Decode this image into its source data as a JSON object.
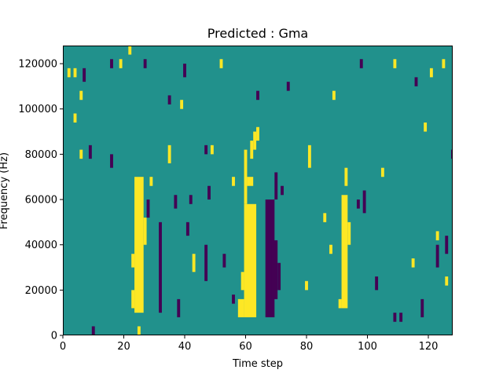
{
  "chart_data": {
    "type": "heatmap",
    "title": "Predicted : Gma",
    "xlabel": "Time step",
    "ylabel": "Frequency (Hz)",
    "xlim": [
      0,
      128
    ],
    "ylim": [
      0,
      128000
    ],
    "x_ticks": [
      0,
      20,
      40,
      60,
      80,
      100,
      120
    ],
    "y_ticks": [
      0,
      20000,
      40000,
      60000,
      80000,
      100000,
      120000
    ],
    "x_tick_labels": [
      "0",
      "20",
      "40",
      "60",
      "80",
      "100",
      "120"
    ],
    "y_tick_labels": [
      "0",
      "20000",
      "40000",
      "60000",
      "80000",
      "100000",
      "120000"
    ],
    "colors": {
      "background": "#21918c",
      "high": "#fde725",
      "low": "#440154"
    },
    "cells": [
      {
        "x0": 59.5,
        "x1": 63.5,
        "y0": 8000,
        "y1": 58000,
        "level": "high"
      },
      {
        "x0": 59.5,
        "x1": 60.5,
        "y0": 58000,
        "y1": 82000,
        "level": "high"
      },
      {
        "x0": 60.5,
        "x1": 62.5,
        "y0": 66000,
        "y1": 70000,
        "level": "high"
      },
      {
        "x0": 61.5,
        "x1": 62.5,
        "y0": 78000,
        "y1": 86000,
        "level": "high"
      },
      {
        "x0": 62.5,
        "x1": 63.5,
        "y0": 82000,
        "y1": 90000,
        "level": "high"
      },
      {
        "x0": 63.5,
        "x1": 64.5,
        "y0": 86000,
        "y1": 92000,
        "level": "high"
      },
      {
        "x0": 57.5,
        "x1": 59.5,
        "y0": 8000,
        "y1": 16000,
        "level": "high"
      },
      {
        "x0": 58.5,
        "x1": 59.5,
        "y0": 20000,
        "y1": 28000,
        "level": "high"
      },
      {
        "x0": 23.5,
        "x1": 26.5,
        "y0": 10000,
        "y1": 70000,
        "level": "high"
      },
      {
        "x0": 22.5,
        "x1": 23.5,
        "y0": 12000,
        "y1": 20000,
        "level": "high"
      },
      {
        "x0": 22.5,
        "x1": 23.5,
        "y0": 30000,
        "y1": 36000,
        "level": "high"
      },
      {
        "x0": 26.5,
        "x1": 27.5,
        "y0": 40000,
        "y1": 52000,
        "level": "high"
      },
      {
        "x0": 24.5,
        "x1": 25.5,
        "y0": 0,
        "y1": 4000,
        "level": "high"
      },
      {
        "x0": 91.5,
        "x1": 93.5,
        "y0": 12000,
        "y1": 62000,
        "level": "high"
      },
      {
        "x0": 90.5,
        "x1": 91.5,
        "y0": 12000,
        "y1": 16000,
        "level": "high"
      },
      {
        "x0": 93.5,
        "x1": 94.5,
        "y0": 40000,
        "y1": 50000,
        "level": "high"
      },
      {
        "x0": 92.5,
        "x1": 93.5,
        "y0": 66000,
        "y1": 74000,
        "level": "high"
      },
      {
        "x0": 66.5,
        "x1": 69.5,
        "y0": 8000,
        "y1": 60000,
        "level": "low"
      },
      {
        "x0": 68.5,
        "x1": 70.5,
        "y0": 16000,
        "y1": 42000,
        "level": "low"
      },
      {
        "x0": 69.5,
        "x1": 70.5,
        "y0": 60000,
        "y1": 72000,
        "level": "low"
      },
      {
        "x0": 70.5,
        "x1": 71.5,
        "y0": 20000,
        "y1": 32000,
        "level": "low"
      },
      {
        "x0": 71.5,
        "x1": 72.5,
        "y0": 62000,
        "y1": 66000,
        "level": "low"
      },
      {
        "x0": 98.5,
        "x1": 99.5,
        "y0": 54000,
        "y1": 64000,
        "level": "low"
      },
      {
        "x0": 96.5,
        "x1": 97.5,
        "y0": 56000,
        "y1": 60000,
        "level": "low"
      },
      {
        "x0": 31.5,
        "x1": 32.5,
        "y0": 10000,
        "y1": 50000,
        "level": "low"
      },
      {
        "x0": 27.5,
        "x1": 28.5,
        "y0": 52000,
        "y1": 60000,
        "level": "low"
      },
      {
        "x0": 36.5,
        "x1": 37.5,
        "y0": 56000,
        "y1": 62000,
        "level": "low"
      },
      {
        "x0": 37.5,
        "x1": 38.5,
        "y0": 8000,
        "y1": 16000,
        "level": "low"
      },
      {
        "x0": 40.5,
        "x1": 41.5,
        "y0": 44000,
        "y1": 50000,
        "level": "low"
      },
      {
        "x0": 41.5,
        "x1": 42.5,
        "y0": 58000,
        "y1": 62000,
        "level": "low"
      },
      {
        "x0": 46.5,
        "x1": 47.5,
        "y0": 24000,
        "y1": 40000,
        "level": "low"
      },
      {
        "x0": 47.5,
        "x1": 48.5,
        "y0": 60000,
        "y1": 66000,
        "level": "low"
      },
      {
        "x0": 52.5,
        "x1": 53.5,
        "y0": 30000,
        "y1": 36000,
        "level": "low"
      },
      {
        "x0": 55.5,
        "x1": 56.5,
        "y0": 14000,
        "y1": 18000,
        "level": "low"
      },
      {
        "x0": 102.5,
        "x1": 103.5,
        "y0": 20000,
        "y1": 26000,
        "level": "low"
      },
      {
        "x0": 108.5,
        "x1": 109.5,
        "y0": 6000,
        "y1": 10000,
        "level": "low"
      },
      {
        "x0": 110.5,
        "x1": 111.5,
        "y0": 6000,
        "y1": 10000,
        "level": "low"
      },
      {
        "x0": 117.5,
        "x1": 118.5,
        "y0": 8000,
        "y1": 16000,
        "level": "low"
      },
      {
        "x0": 122.5,
        "x1": 123.5,
        "y0": 30000,
        "y1": 40000,
        "level": "low"
      },
      {
        "x0": 125.5,
        "x1": 126.5,
        "y0": 36000,
        "y1": 44000,
        "level": "low"
      },
      {
        "x0": 15.5,
        "x1": 16.5,
        "y0": 74000,
        "y1": 80000,
        "level": "low"
      },
      {
        "x0": 8.5,
        "x1": 9.5,
        "y0": 78000,
        "y1": 84000,
        "level": "low"
      },
      {
        "x0": 6.5,
        "x1": 7.5,
        "y0": 112000,
        "y1": 118000,
        "level": "low"
      },
      {
        "x0": 15.5,
        "x1": 16.5,
        "y0": 118000,
        "y1": 122000,
        "level": "low"
      },
      {
        "x0": 26.5,
        "x1": 27.5,
        "y0": 118000,
        "y1": 122000,
        "level": "low"
      },
      {
        "x0": 39.5,
        "x1": 40.5,
        "y0": 114000,
        "y1": 120000,
        "level": "low"
      },
      {
        "x0": 34.5,
        "x1": 35.5,
        "y0": 102000,
        "y1": 106000,
        "level": "low"
      },
      {
        "x0": 46.5,
        "x1": 47.5,
        "y0": 80000,
        "y1": 84000,
        "level": "low"
      },
      {
        "x0": 63.5,
        "x1": 64.5,
        "y0": 104000,
        "y1": 108000,
        "level": "low"
      },
      {
        "x0": 73.5,
        "x1": 74.5,
        "y0": 108000,
        "y1": 112000,
        "level": "low"
      },
      {
        "x0": 97.5,
        "x1": 98.5,
        "y0": 118000,
        "y1": 122000,
        "level": "low"
      },
      {
        "x0": 115.5,
        "x1": 116.5,
        "y0": 110000,
        "y1": 114000,
        "level": "low"
      },
      {
        "x0": 127.5,
        "x1": 128.5,
        "y0": 78000,
        "y1": 82000,
        "level": "low"
      },
      {
        "x0": 9.5,
        "x1": 10.5,
        "y0": 0,
        "y1": 4000,
        "level": "low"
      },
      {
        "x0": 1.5,
        "x1": 2.5,
        "y0": 114000,
        "y1": 118000,
        "level": "high"
      },
      {
        "x0": 3.5,
        "x1": 4.5,
        "y0": 114000,
        "y1": 118000,
        "level": "high"
      },
      {
        "x0": 5.5,
        "x1": 6.5,
        "y0": 104000,
        "y1": 108000,
        "level": "high"
      },
      {
        "x0": 3.5,
        "x1": 4.5,
        "y0": 94000,
        "y1": 98000,
        "level": "high"
      },
      {
        "x0": 5.5,
        "x1": 6.5,
        "y0": 78000,
        "y1": 82000,
        "level": "high"
      },
      {
        "x0": 18.5,
        "x1": 19.5,
        "y0": 118000,
        "y1": 122000,
        "level": "high"
      },
      {
        "x0": 21.5,
        "x1": 22.5,
        "y0": 124000,
        "y1": 128000,
        "level": "high"
      },
      {
        "x0": 28.5,
        "x1": 29.5,
        "y0": 66000,
        "y1": 70000,
        "level": "high"
      },
      {
        "x0": 34.5,
        "x1": 35.5,
        "y0": 76000,
        "y1": 84000,
        "level": "high"
      },
      {
        "x0": 38.5,
        "x1": 39.5,
        "y0": 100000,
        "y1": 104000,
        "level": "high"
      },
      {
        "x0": 42.5,
        "x1": 43.5,
        "y0": 28000,
        "y1": 36000,
        "level": "high"
      },
      {
        "x0": 48.5,
        "x1": 49.5,
        "y0": 80000,
        "y1": 84000,
        "level": "high"
      },
      {
        "x0": 51.5,
        "x1": 52.5,
        "y0": 118000,
        "y1": 122000,
        "level": "high"
      },
      {
        "x0": 55.5,
        "x1": 56.5,
        "y0": 66000,
        "y1": 70000,
        "level": "high"
      },
      {
        "x0": 80.5,
        "x1": 81.5,
        "y0": 74000,
        "y1": 84000,
        "level": "high"
      },
      {
        "x0": 79.5,
        "x1": 80.5,
        "y0": 20000,
        "y1": 24000,
        "level": "high"
      },
      {
        "x0": 85.5,
        "x1": 86.5,
        "y0": 50000,
        "y1": 54000,
        "level": "high"
      },
      {
        "x0": 87.5,
        "x1": 88.5,
        "y0": 36000,
        "y1": 40000,
        "level": "high"
      },
      {
        "x0": 88.5,
        "x1": 89.5,
        "y0": 104000,
        "y1": 108000,
        "level": "high"
      },
      {
        "x0": 104.5,
        "x1": 105.5,
        "y0": 70000,
        "y1": 74000,
        "level": "high"
      },
      {
        "x0": 108.5,
        "x1": 109.5,
        "y0": 118000,
        "y1": 122000,
        "level": "high"
      },
      {
        "x0": 114.5,
        "x1": 115.5,
        "y0": 30000,
        "y1": 34000,
        "level": "high"
      },
      {
        "x0": 118.5,
        "x1": 119.5,
        "y0": 90000,
        "y1": 94000,
        "level": "high"
      },
      {
        "x0": 120.5,
        "x1": 121.5,
        "y0": 114000,
        "y1": 118000,
        "level": "high"
      },
      {
        "x0": 124.5,
        "x1": 125.5,
        "y0": 118000,
        "y1": 122000,
        "level": "high"
      },
      {
        "x0": 122.5,
        "x1": 123.5,
        "y0": 42000,
        "y1": 46000,
        "level": "high"
      },
      {
        "x0": 125.5,
        "x1": 126.5,
        "y0": 22000,
        "y1": 26000,
        "level": "high"
      }
    ]
  }
}
